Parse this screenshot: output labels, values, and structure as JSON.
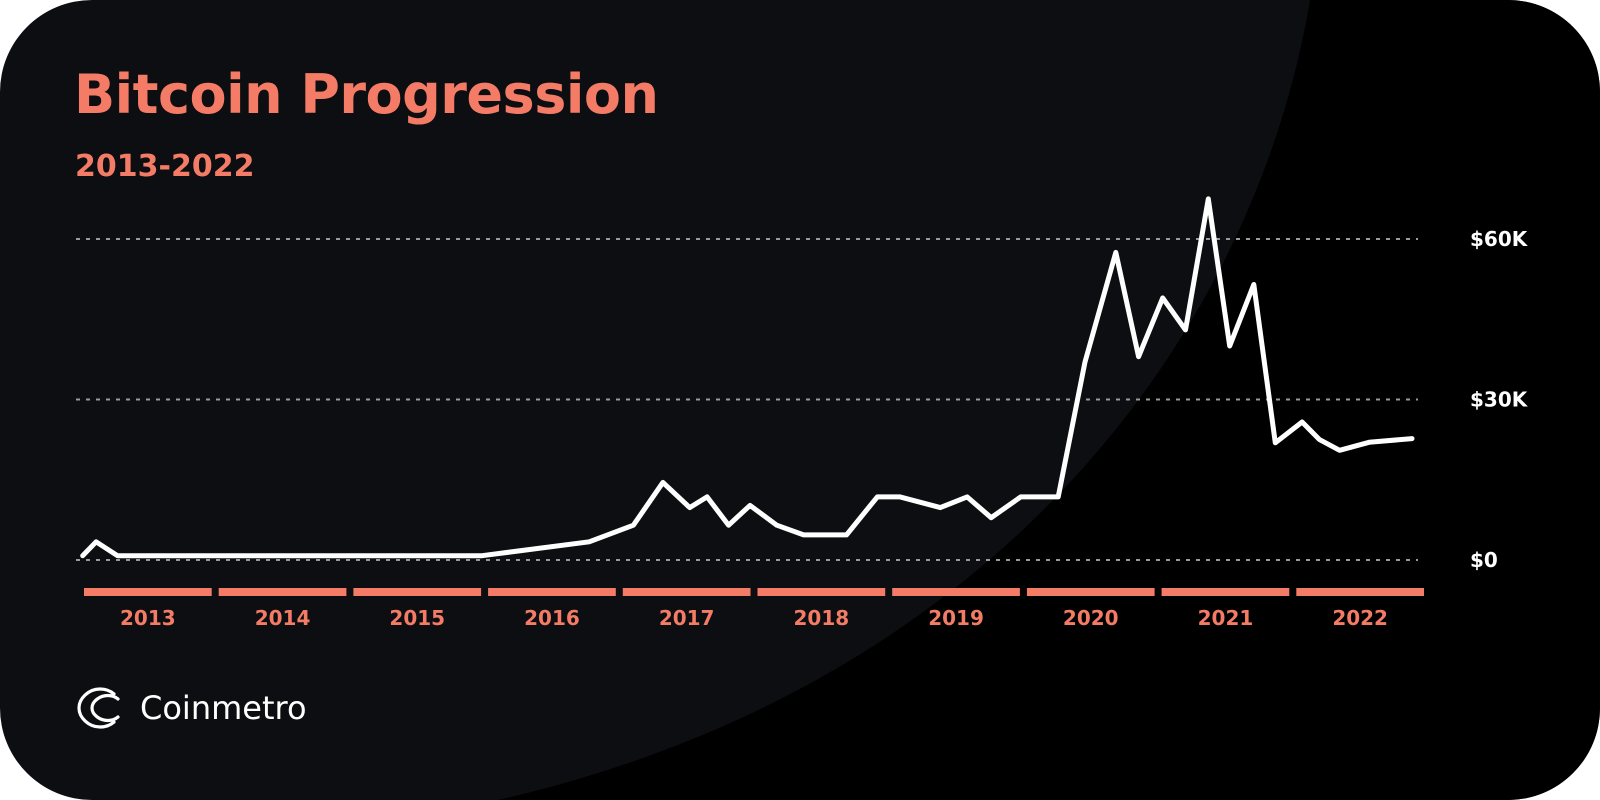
{
  "colors": {
    "background": "#0d0e11",
    "background_shape": "#000000",
    "accent": "#f47c66",
    "line": "#ffffff",
    "grid": "#9a9a9a"
  },
  "brand": {
    "name": "Coinmetro",
    "icon": "coinmetro-logo-icon"
  },
  "chart_data": {
    "type": "line",
    "title": "Bitcoin Progression",
    "subtitle": "2013-2022",
    "xlabel": "",
    "ylabel": "",
    "x_range": [
      2013.0,
      2023.0
    ],
    "ylim": [
      0,
      60000
    ],
    "y_ticks": [
      {
        "value": 0,
        "label": "$0"
      },
      {
        "value": 30000,
        "label": "$30K"
      },
      {
        "value": 60000,
        "label": "$60K"
      }
    ],
    "y_axis_position": "right",
    "grid": "horizontal dashed",
    "legend": "none",
    "categories": [
      "2013",
      "2014",
      "2015",
      "2016",
      "2017",
      "2018",
      "2019",
      "2020",
      "2021",
      "2022"
    ],
    "series": [
      {
        "x": [
          2013.02,
          2013.12,
          2013.28,
          2014.0,
          2015.0,
          2016.0,
          2016.8,
          2017.13,
          2017.35,
          2017.55,
          2017.68,
          2017.84,
          2018.0,
          2018.2,
          2018.4,
          2018.72,
          2018.95,
          2019.12,
          2019.42,
          2019.62,
          2019.8,
          2020.02,
          2020.3,
          2020.5,
          2020.73,
          2020.9,
          2021.08,
          2021.25,
          2021.42,
          2021.58,
          2021.76,
          2021.92,
          2022.12,
          2022.25,
          2022.4,
          2022.62,
          2022.94
        ],
        "y": [
          800,
          3400,
          800,
          800,
          800,
          800,
          3400,
          6500,
          14500,
          9800,
          11800,
          6500,
          10200,
          6500,
          4700,
          4700,
          11800,
          11800,
          9800,
          11800,
          7900,
          11800,
          11800,
          37000,
          57500,
          38000,
          49000,
          43000,
          67500,
          40000,
          51500,
          21900,
          25800,
          22500,
          20500,
          22000,
          22700
        ]
      }
    ]
  }
}
